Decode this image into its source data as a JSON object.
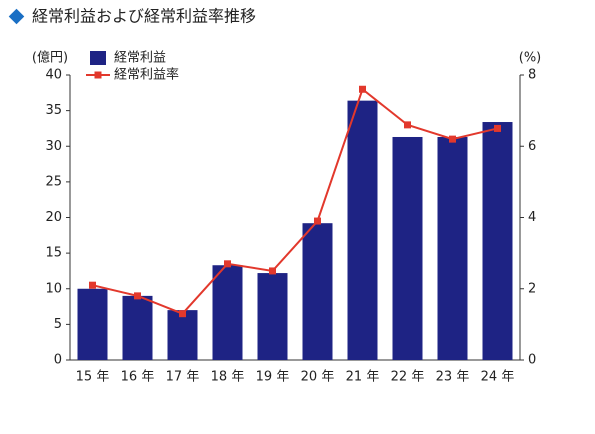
{
  "chart_data": {
    "type": "bar",
    "title": "経常利益および経常利益率推移",
    "y_label": "(億円)",
    "y2_label": "(%)",
    "categories": [
      "15 年",
      "16 年",
      "17 年",
      "18 年",
      "19 年",
      "20 年",
      "21 年",
      "22 年",
      "23 年",
      "24 年"
    ],
    "series": [
      {
        "name": "経常利益",
        "color": "#1e2384",
        "type": "bar",
        "values": [
          10,
          9,
          7,
          13.3,
          12.2,
          19.2,
          36.4,
          31.3,
          31.3,
          33.4
        ]
      },
      {
        "name": "経常利益率",
        "color": "#e2382c",
        "type": "line",
        "axis": "y2",
        "values": [
          2.1,
          1.8,
          1.3,
          2.7,
          2.5,
          3.9,
          7.6,
          6.6,
          6.2,
          6.5
        ]
      }
    ],
    "ylim": [
      0,
      40
    ],
    "yticks": [
      0,
      5,
      10,
      15,
      20,
      25,
      30,
      35,
      40
    ],
    "y2lim": [
      0,
      8
    ],
    "y2ticks": [
      0,
      2,
      4,
      6,
      8
    ]
  }
}
